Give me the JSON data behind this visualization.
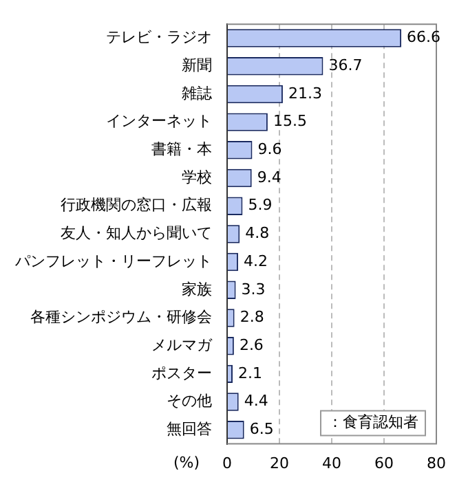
{
  "chart_data": {
    "type": "bar",
    "orientation": "horizontal",
    "categories": [
      "テレビ・ラジオ",
      "新聞",
      "雑誌",
      "インターネット",
      "書籍・本",
      "学校",
      "行政機関の窓口・広報",
      "友人・知人から聞いて",
      "パンフレット・リーフレット",
      "家族",
      "各種シンポジウム・研修会",
      "メルマガ",
      "ポスター",
      "その他",
      "無回答"
    ],
    "values": [
      66.6,
      36.7,
      21.3,
      15.5,
      9.6,
      9.4,
      5.9,
      4.8,
      4.2,
      3.3,
      2.8,
      2.6,
      2.1,
      4.4,
      6.5
    ],
    "color": "#b8c8f4",
    "xlim": [
      0,
      80
    ],
    "xticks": [
      0,
      20,
      40,
      60,
      80
    ],
    "xlabel": "(%)",
    "grid": "x",
    "data_labels": true,
    "annotations": [
      "：食育認知者"
    ]
  }
}
